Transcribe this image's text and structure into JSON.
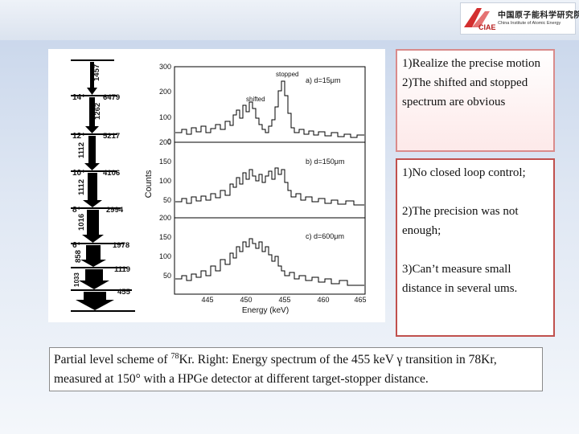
{
  "logo": {
    "mark": "CIAE",
    "cn": "中国原子能科学研究院",
    "en": "China Institute of Atomic Energy"
  },
  "figure": {
    "level_scheme": {
      "transitions": [
        "1457",
        "1262",
        "1112",
        "1112",
        "1016",
        "858",
        "1033"
      ],
      "level_energies": [
        "6479",
        "5217",
        "4106",
        "2994",
        "1978",
        "1119",
        "455"
      ],
      "spins": [
        "14⁺",
        "12⁺",
        "10⁺",
        "8⁺",
        "6⁺"
      ]
    },
    "ylabel": "Counts",
    "xlabel": "Energy (keV)",
    "xticks": [
      "445",
      "450",
      "455",
      "460",
      "465"
    ],
    "panels": [
      {
        "label": "a) d=15μm",
        "yticks": [
          "300",
          "200",
          "100",
          "0"
        ],
        "annotations": [
          "stopped",
          "shifted"
        ]
      },
      {
        "label": "b) d=150μm",
        "yticks": [
          "200",
          "150",
          "100",
          "50"
        ]
      },
      {
        "label": "c) d=600μm",
        "yticks": [
          "200",
          "150",
          "100",
          "50"
        ]
      }
    ]
  },
  "box1": {
    "lines": [
      "1)Realize the precise motion",
      "2)The shifted and stopped spectrum are obvious"
    ]
  },
  "box2": {
    "item1": "1)No closed loop control;",
    "item2": "2)The precision was not enough;",
    "item3": "3)Can’t measure small distance in several ums."
  },
  "caption": {
    "part1": "Partial level scheme of ",
    "sup": "78",
    "part2": "Kr. Right: Energy spectrum of the 455 keV γ transition in 78Kr, measured at 150° with a HPGe detector at different target-stopper distance."
  }
}
